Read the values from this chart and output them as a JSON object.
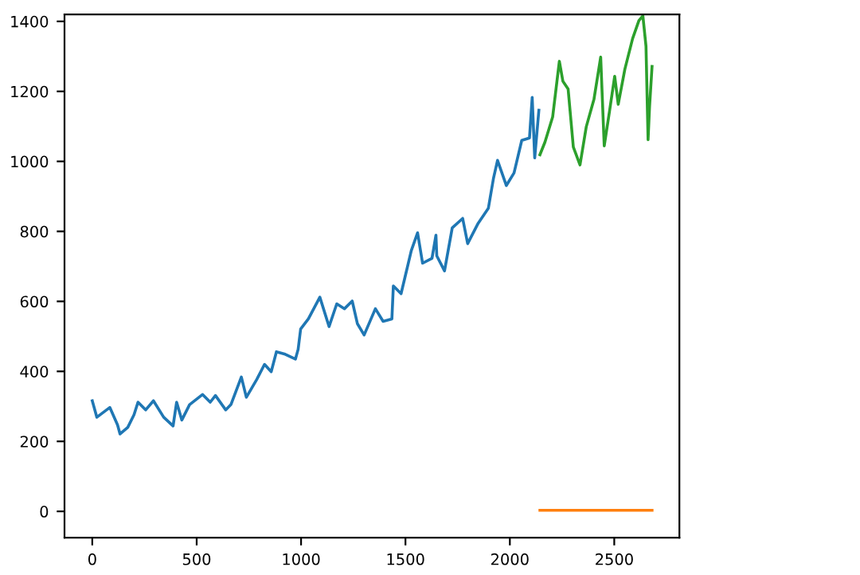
{
  "chart_data": {
    "type": "line",
    "xlim": [
      -133,
      2812
    ],
    "ylim": [
      -75,
      1420
    ],
    "xticks": [
      0,
      500,
      1000,
      1500,
      2000,
      2500
    ],
    "yticks": [
      0,
      200,
      400,
      600,
      800,
      1000,
      1200,
      1400
    ],
    "grid": false,
    "legend": false,
    "series": [
      {
        "color": "#1f77b4",
        "x": [
          0,
          22,
          84,
          121,
          133,
          170,
          200,
          219,
          256,
          293,
          342,
          387,
          404,
          429,
          466,
          528,
          565,
          590,
          639,
          664,
          714,
          738,
          788,
          825,
          857,
          882,
          924,
          973,
          986,
          998,
          1035,
          1090,
          1134,
          1171,
          1208,
          1245,
          1270,
          1302,
          1356,
          1393,
          1435,
          1442,
          1479,
          1528,
          1558,
          1582,
          1627,
          1646,
          1650,
          1687,
          1724,
          1774,
          1798,
          1848,
          1897,
          1922,
          1941,
          1983,
          2020,
          2057,
          2094,
          2107,
          2119,
          2139
        ],
        "values": [
          316,
          269,
          297,
          247,
          221,
          240,
          276,
          312,
          290,
          316,
          269,
          244,
          312,
          261,
          305,
          334,
          312,
          331,
          290,
          305,
          384,
          326,
          377,
          420,
          399,
          456,
          449,
          435,
          463,
          521,
          550,
          612,
          528,
          593,
          579,
          601,
          536,
          504,
          579,
          543,
          550,
          644,
          622,
          745,
          796,
          709,
          723,
          789,
          730,
          687,
          810,
          837,
          765,
          823,
          866,
          953,
          1003,
          931,
          967,
          1060,
          1067,
          1183,
          1010,
          1146
        ]
      },
      {
        "color": "#ff7f0e",
        "x": [
          2144,
          2300,
          2450,
          2600,
          2681
        ],
        "values": [
          3,
          3,
          3,
          3,
          3
        ]
      },
      {
        "color": "#2ca02c",
        "x": [
          2144,
          2168,
          2205,
          2237,
          2254,
          2279,
          2304,
          2336,
          2366,
          2403,
          2435,
          2452,
          2477,
          2502,
          2519,
          2551,
          2588,
          2618,
          2637,
          2652,
          2662,
          2669,
          2681
        ],
        "values": [
          1019,
          1055,
          1127,
          1286,
          1229,
          1207,
          1041,
          990,
          1099,
          1178,
          1298,
          1044,
          1142,
          1243,
          1163,
          1264,
          1351,
          1402,
          1416,
          1329,
          1062,
          1156,
          1271
        ]
      }
    ]
  }
}
